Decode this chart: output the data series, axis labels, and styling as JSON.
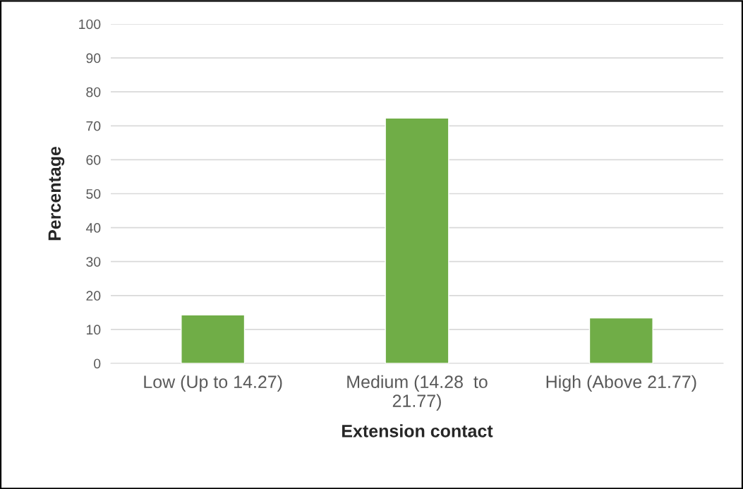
{
  "chart_data": {
    "type": "bar",
    "xlabel": "Extension contact",
    "ylabel": "Percentage",
    "categories": [
      "Low (Up to 14.27)",
      "Medium (14.28  to\n21.77)",
      "High (Above 21.77)"
    ],
    "values": [
      14.3,
      72.3,
      13.4
    ],
    "color": "#70ad47",
    "ylim": [
      0,
      100
    ],
    "yticks": [
      0,
      10,
      20,
      30,
      40,
      50,
      60,
      70,
      80,
      90,
      100
    ],
    "grid": "y"
  }
}
